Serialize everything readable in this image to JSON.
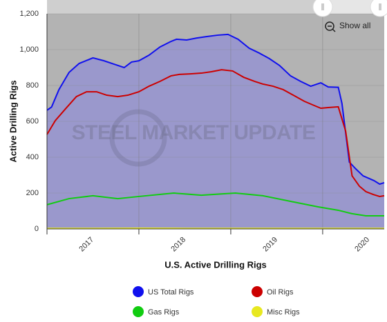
{
  "chart_data": {
    "type": "area",
    "title": "U.S. Active Drilling Rigs",
    "y_label": "Active Drilling Rigs",
    "watermark": "STEEL MARKET UPDATE",
    "button": "Show all",
    "area_color": "#9a98cc",
    "background": "#b3b3b3",
    "xlim": [
      2017,
      2020.67
    ],
    "xticks": [
      2017,
      2018,
      2019,
      2020
    ],
    "ylim": [
      0,
      1200
    ],
    "yticks": [
      0,
      200,
      400,
      600,
      800,
      {
        "value": 1000,
        "label": "1,000"
      },
      {
        "value": 1200,
        "label": "1,200"
      }
    ],
    "grid": true,
    "legend": "bottom",
    "series": [
      {
        "name": "US Total Rigs",
        "color": "#1010ee",
        "x": [
          2017.0,
          2017.05,
          2017.13,
          2017.24,
          2017.35,
          2017.5,
          2017.62,
          2017.73,
          2017.84,
          2017.92,
          2018.0,
          2018.11,
          2018.23,
          2018.35,
          2018.41,
          2018.52,
          2018.63,
          2018.74,
          2018.86,
          2018.97,
          2019.08,
          2019.2,
          2019.31,
          2019.42,
          2019.53,
          2019.65,
          2019.76,
          2019.87,
          2019.98,
          2020.06,
          2020.17,
          2020.21,
          2020.29,
          2020.36,
          2020.44,
          2020.56,
          2020.62,
          2020.67
        ],
        "values": [
          662,
          680,
          777,
          873,
          923,
          954,
          938,
          919,
          900,
          931,
          938,
          969,
          1015,
          1046,
          1058,
          1054,
          1065,
          1073,
          1081,
          1085,
          1058,
          1008,
          981,
          950,
          912,
          854,
          823,
          796,
          815,
          792,
          790,
          700,
          373,
          335,
          296,
          269,
          250,
          258
        ]
      },
      {
        "name": "Oil Rigs",
        "color": "#cc0000",
        "x": [
          2017.0,
          2017.09,
          2017.2,
          2017.32,
          2017.43,
          2017.54,
          2017.65,
          2017.77,
          2017.88,
          2018.0,
          2018.11,
          2018.23,
          2018.35,
          2018.44,
          2018.56,
          2018.68,
          2018.79,
          2018.9,
          2019.02,
          2019.14,
          2019.26,
          2019.35,
          2019.46,
          2019.57,
          2019.68,
          2019.8,
          2019.91,
          2019.98,
          2020.06,
          2020.17,
          2020.25,
          2020.32,
          2020.4,
          2020.47,
          2020.55,
          2020.62,
          2020.67
        ],
        "values": [
          527,
          604,
          669,
          738,
          765,
          765,
          746,
          738,
          746,
          765,
          796,
          823,
          854,
          862,
          865,
          869,
          877,
          888,
          881,
          846,
          823,
          808,
          796,
          777,
          746,
          712,
          688,
          673,
          677,
          681,
          546,
          296,
          238,
          208,
          192,
          181,
          185
        ]
      },
      {
        "name": "Gas Rigs",
        "color": "#11cc11",
        "x": [
          2017.0,
          2017.24,
          2017.5,
          2017.77,
          2018.0,
          2018.38,
          2018.68,
          2019.05,
          2019.35,
          2019.65,
          2019.95,
          2020.17,
          2020.32,
          2020.47,
          2020.67
        ],
        "values": [
          135,
          169,
          185,
          169,
          181,
          200,
          188,
          200,
          185,
          154,
          123,
          104,
          85,
          73,
          73
        ]
      },
      {
        "name": "Misc Rigs",
        "color": "#e8e820",
        "x": [
          2017.0,
          2017.5,
          2018.0,
          2018.5,
          2019.0,
          2019.5,
          2020.0,
          2020.67
        ],
        "values": [
          3,
          3,
          4,
          3,
          3,
          3,
          3,
          3
        ]
      }
    ]
  }
}
